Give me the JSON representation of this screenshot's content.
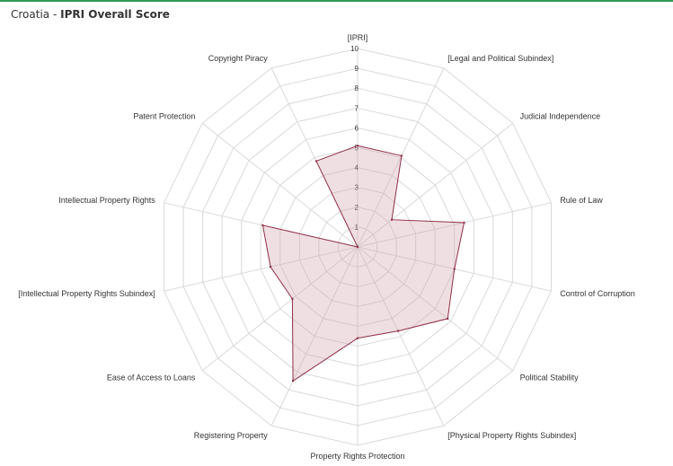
{
  "header": {
    "country": "Croatia",
    "separator": " - ",
    "title": "IPRI Overall Score"
  },
  "chart_data": {
    "type": "radar",
    "axes": [
      "[IPRI]",
      "[Legal and Political Subindex]",
      "Judicial Independence",
      "Rule of Law",
      "Control of Corruption",
      "Political Stability",
      "[Physical Property Rights Subindex]",
      "Property Rights Protection",
      "Registering Property",
      "Ease of Access to Loans",
      "[Intellectual Property Rights Subindex]",
      "Intellectual Property Rights",
      "Patent Protection",
      "Copyright Piracy"
    ],
    "values": [
      5.1,
      5.1,
      2.2,
      5.5,
      5.0,
      5.8,
      4.7,
      4.6,
      7.5,
      4.2,
      4.5,
      4.9,
      0,
      4.8
    ],
    "ticks": [
      "1",
      "2",
      "3",
      "4",
      "5",
      "6",
      "7",
      "8",
      "9",
      "10"
    ],
    "range": [
      0,
      10
    ],
    "grid": true,
    "colors": {
      "fill": "#d4a3ad",
      "line": "#8e2f47",
      "grid": "#d9d9d9"
    }
  }
}
